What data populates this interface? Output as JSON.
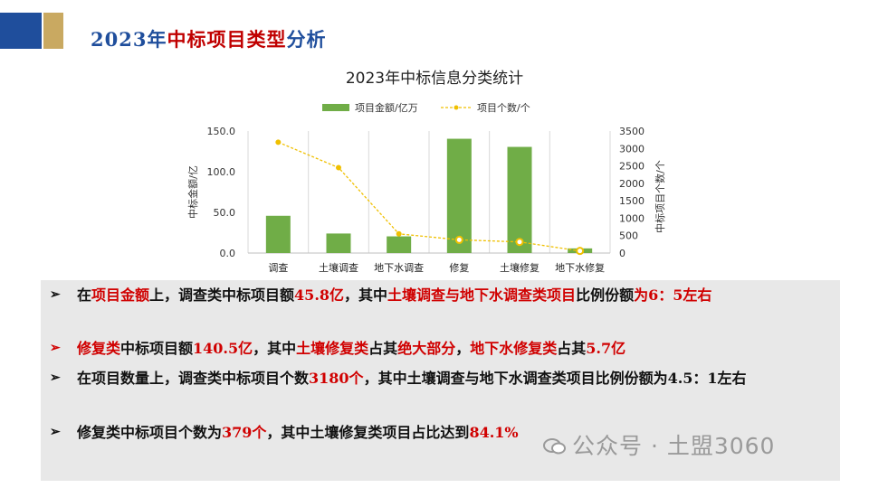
{
  "header": {
    "title_blue_1": "2023年",
    "title_red": "中标项目类型",
    "title_blue_2": "分析"
  },
  "chart_data": {
    "type": "bar",
    "title": "2023年中标信息分类统计",
    "categories": [
      "调查",
      "土壤调查",
      "地下水调查",
      "修复",
      "土壤修复",
      "地下水修复"
    ],
    "series": [
      {
        "name": "项目金额/亿万",
        "type": "bar",
        "axis": "left",
        "color": "#70ad47",
        "values": [
          45.8,
          24.0,
          20.5,
          140.5,
          130.5,
          5.7
        ]
      },
      {
        "name": "项目个数/个",
        "type": "line",
        "axis": "right",
        "color": "#f0c000",
        "values": [
          3180,
          2450,
          550,
          379,
          319,
          60
        ]
      }
    ],
    "ylabel": "中标金额/亿",
    "y2label": "中标项目个数/个",
    "ylim": [
      0,
      150
    ],
    "y2lim": [
      0,
      3500
    ],
    "yticks": [
      "0.0",
      "50.0",
      "100.0",
      "150.0"
    ],
    "y2ticks": [
      "0",
      "500",
      "1000",
      "1500",
      "2000",
      "2500",
      "3000",
      "3500"
    ],
    "legend_position": "top"
  },
  "bullets": [
    {
      "arrow": "➢",
      "parts": [
        {
          "text": "在",
          "red": false
        },
        {
          "text": "项目金额",
          "red": true
        },
        {
          "text": "上，调查类中标项目额",
          "red": false
        },
        {
          "text": "45.8亿",
          "red": true
        },
        {
          "text": "，其中",
          "red": false
        },
        {
          "text": "土壤调查与地下水调查类项目",
          "red": true
        },
        {
          "text": "比例份额",
          "red": false
        },
        {
          "text": "为6：5左右",
          "red": true
        }
      ]
    },
    {
      "arrow": "➢",
      "red_arrow": true,
      "parts": [
        {
          "text": "修复类",
          "red": true
        },
        {
          "text": "中标项目额",
          "red": false
        },
        {
          "text": "140.5亿",
          "red": true
        },
        {
          "text": "，其中",
          "red": false
        },
        {
          "text": "土壤修复类",
          "red": true
        },
        {
          "text": "占其",
          "red": false
        },
        {
          "text": "绝大部分",
          "red": true
        },
        {
          "text": "，",
          "red": false
        },
        {
          "text": "地下水修复类",
          "red": true
        },
        {
          "text": "占其",
          "red": false
        },
        {
          "text": "5.7亿",
          "red": true
        }
      ]
    },
    {
      "arrow": "➢",
      "parts": [
        {
          "text": "在项目数量上，调查类中标项目个数",
          "red": false
        },
        {
          "text": "3180个",
          "red": true
        },
        {
          "text": "，其中土壤调查与地下水调查类项目比例份额为4.5：1左右",
          "red": false
        }
      ]
    },
    {
      "arrow": "➢",
      "parts": [
        {
          "text": "修复类中标项目个数为",
          "red": false
        },
        {
          "text": "379个",
          "red": true
        },
        {
          "text": "，其中土壤修复类项目占比达到",
          "red": false
        },
        {
          "text": "84.1%",
          "red": true
        }
      ]
    }
  ],
  "watermark": "公众号 · 土盟3060"
}
